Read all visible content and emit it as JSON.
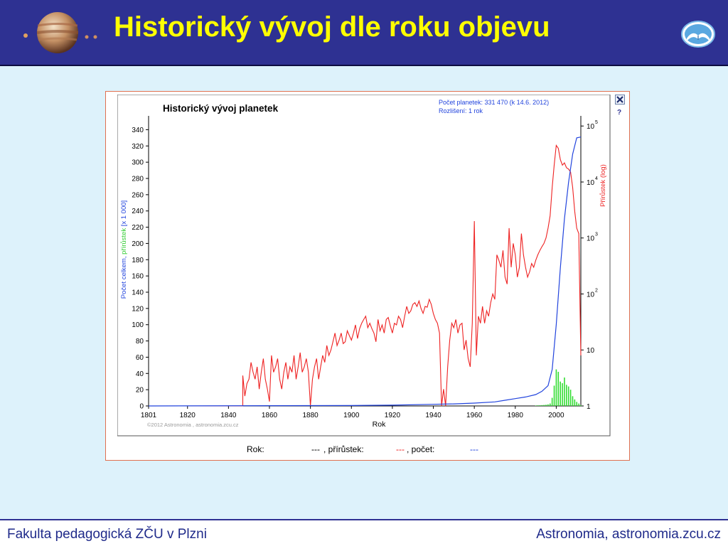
{
  "header": {
    "title": "Historický vývoj dle roku objevu"
  },
  "footer": {
    "left": "Fakulta pedagogická ZČU v Plzni",
    "right": "Astronomia, astronomia.zcu.cz"
  },
  "panel": {
    "help_label": "?",
    "legend": {
      "rok_label": "Rok:",
      "rok_value": "---",
      "prirustek_label": ", přírůstek:",
      "prirustek_value": "---",
      "pocet_label": ", počet:",
      "pocet_value": "---"
    }
  },
  "colors": {
    "header_bg": "#2e3192",
    "title": "#ffff00",
    "count_line": "#2244dd",
    "increment_line": "#ee2222",
    "bars": "#33dd33"
  },
  "chart_data": {
    "type": "line",
    "title": "Historický vývoj planetek",
    "info_lines": [
      "Počet planetek: 331 470 (k 14.6. 2012)",
      "Rozlišení: 1 rok"
    ],
    "credit": "©2012 Astronomia , astronomia.zcu.cz",
    "xlabel": "Rok",
    "ylabel_parts": [
      "Počet celkem",
      ", ",
      "přírůstek",
      " [x 1 000]"
    ],
    "ylabel_right": "Přírůstek (log)",
    "xlim": [
      1801,
      2012
    ],
    "ylim": [
      0,
      350
    ],
    "x_ticks": [
      1801,
      1820,
      1840,
      1860,
      1880,
      1900,
      1920,
      1940,
      1960,
      1980,
      2000
    ],
    "y_ticks": [
      0,
      20,
      40,
      60,
      80,
      100,
      120,
      140,
      160,
      180,
      200,
      220,
      240,
      260,
      280,
      300,
      320,
      340
    ],
    "y2_scale": "log",
    "y2_ticks": [
      {
        "label": "1",
        "exp": "",
        "value": 1
      },
      {
        "label": "10",
        "exp": "",
        "value": 10
      },
      {
        "label": "10",
        "exp": "2",
        "value": 100
      },
      {
        "label": "10",
        "exp": "3",
        "value": 1000
      },
      {
        "label": "10",
        "exp": "4",
        "value": 10000
      },
      {
        "label": "10",
        "exp": "5",
        "value": 100000
      }
    ],
    "series": [
      {
        "name": "Počet celkem",
        "axis": "left",
        "color": "#2244dd",
        "points": [
          [
            1801,
            0
          ],
          [
            1900,
            0.5
          ],
          [
            1920,
            1
          ],
          [
            1940,
            2
          ],
          [
            1950,
            2.5
          ],
          [
            1960,
            3.5
          ],
          [
            1970,
            5
          ],
          [
            1975,
            7
          ],
          [
            1980,
            9
          ],
          [
            1985,
            11
          ],
          [
            1990,
            14
          ],
          [
            1993,
            18
          ],
          [
            1996,
            25
          ],
          [
            1998,
            45
          ],
          [
            2000,
            100
          ],
          [
            2002,
            170
          ],
          [
            2004,
            230
          ],
          [
            2006,
            275
          ],
          [
            2008,
            310
          ],
          [
            2010,
            330
          ],
          [
            2012,
            331
          ]
        ]
      },
      {
        "name": "Přírůstek",
        "axis": "right",
        "color": "#ee2222",
        "points": [
          [
            1801,
            1
          ],
          [
            1847,
            1
          ],
          [
            1847,
            3.5
          ],
          [
            1848,
            1.5
          ],
          [
            1849,
            2.5
          ],
          [
            1850,
            3
          ],
          [
            1851,
            6
          ],
          [
            1852,
            4
          ],
          [
            1853,
            3
          ],
          [
            1854,
            5
          ],
          [
            1855,
            2
          ],
          [
            1856,
            4
          ],
          [
            1857,
            7
          ],
          [
            1858,
            3
          ],
          [
            1859,
            2
          ],
          [
            1860,
            1.2
          ],
          [
            1861,
            8
          ],
          [
            1862,
            4
          ],
          [
            1863,
            5
          ],
          [
            1864,
            7
          ],
          [
            1865,
            3
          ],
          [
            1866,
            2
          ],
          [
            1867,
            4
          ],
          [
            1868,
            6
          ],
          [
            1869,
            3
          ],
          [
            1870,
            5
          ],
          [
            1871,
            4
          ],
          [
            1872,
            8
          ],
          [
            1873,
            3
          ],
          [
            1874,
            5
          ],
          [
            1875,
            9
          ],
          [
            1876,
            4
          ],
          [
            1877,
            5
          ],
          [
            1878,
            7
          ],
          [
            1879,
            4
          ],
          [
            1880,
            1
          ],
          [
            1881,
            3
          ],
          [
            1882,
            5
          ],
          [
            1883,
            7
          ],
          [
            1884,
            3
          ],
          [
            1885,
            5
          ],
          [
            1886,
            8
          ],
          [
            1887,
            6
          ],
          [
            1888,
            12
          ],
          [
            1889,
            8
          ],
          [
            1890,
            10
          ],
          [
            1891,
            14
          ],
          [
            1892,
            20
          ],
          [
            1893,
            12
          ],
          [
            1894,
            15
          ],
          [
            1895,
            20
          ],
          [
            1896,
            13
          ],
          [
            1897,
            14
          ],
          [
            1898,
            22
          ],
          [
            1899,
            18
          ],
          [
            1900,
            15
          ],
          [
            1901,
            20
          ],
          [
            1902,
            28
          ],
          [
            1903,
            16
          ],
          [
            1904,
            24
          ],
          [
            1905,
            30
          ],
          [
            1906,
            35
          ],
          [
            1907,
            40
          ],
          [
            1908,
            25
          ],
          [
            1909,
            30
          ],
          [
            1910,
            24
          ],
          [
            1911,
            20
          ],
          [
            1912,
            14
          ],
          [
            1913,
            35
          ],
          [
            1914,
            22
          ],
          [
            1915,
            28
          ],
          [
            1916,
            20
          ],
          [
            1917,
            35
          ],
          [
            1918,
            38
          ],
          [
            1919,
            27
          ],
          [
            1920,
            20
          ],
          [
            1921,
            30
          ],
          [
            1922,
            28
          ],
          [
            1923,
            40
          ],
          [
            1924,
            35
          ],
          [
            1925,
            25
          ],
          [
            1926,
            40
          ],
          [
            1927,
            60
          ],
          [
            1928,
            45
          ],
          [
            1929,
            50
          ],
          [
            1930,
            65
          ],
          [
            1931,
            70
          ],
          [
            1932,
            60
          ],
          [
            1933,
            75
          ],
          [
            1934,
            55
          ],
          [
            1935,
            45
          ],
          [
            1936,
            60
          ],
          [
            1937,
            58
          ],
          [
            1938,
            80
          ],
          [
            1939,
            65
          ],
          [
            1940,
            45
          ],
          [
            1941,
            35
          ],
          [
            1942,
            30
          ],
          [
            1943,
            20
          ],
          [
            1944,
            1
          ],
          [
            1945,
            2
          ],
          [
            1946,
            1
          ],
          [
            1947,
            5
          ],
          [
            1948,
            15
          ],
          [
            1949,
            30
          ],
          [
            1950,
            25
          ],
          [
            1951,
            35
          ],
          [
            1952,
            20
          ],
          [
            1953,
            28
          ],
          [
            1954,
            30
          ],
          [
            1955,
            10
          ],
          [
            1956,
            15
          ],
          [
            1957,
            7
          ],
          [
            1958,
            5
          ],
          [
            1959,
            30
          ],
          [
            1960,
            2000
          ],
          [
            1961,
            8
          ],
          [
            1962,
            40
          ],
          [
            1963,
            30
          ],
          [
            1964,
            60
          ],
          [
            1965,
            30
          ],
          [
            1966,
            50
          ],
          [
            1967,
            40
          ],
          [
            1968,
            70
          ],
          [
            1969,
            100
          ],
          [
            1970,
            80
          ],
          [
            1971,
            500
          ],
          [
            1972,
            400
          ],
          [
            1973,
            300
          ],
          [
            1974,
            600
          ],
          [
            1975,
            200
          ],
          [
            1976,
            150
          ],
          [
            1977,
            1500
          ],
          [
            1978,
            300
          ],
          [
            1979,
            800
          ],
          [
            1980,
            500
          ],
          [
            1981,
            200
          ],
          [
            1982,
            300
          ],
          [
            1983,
            1200
          ],
          [
            1984,
            500
          ],
          [
            1985,
            300
          ],
          [
            1986,
            200
          ],
          [
            1987,
            250
          ],
          [
            1988,
            350
          ],
          [
            1989,
            300
          ],
          [
            1990,
            400
          ],
          [
            1991,
            500
          ],
          [
            1992,
            600
          ],
          [
            1993,
            700
          ],
          [
            1994,
            800
          ],
          [
            1995,
            1000
          ],
          [
            1996,
            1500
          ],
          [
            1997,
            2500
          ],
          [
            1998,
            8000
          ],
          [
            1999,
            20000
          ],
          [
            2000,
            45000
          ],
          [
            2001,
            40000
          ],
          [
            2002,
            25000
          ],
          [
            2003,
            20000
          ],
          [
            2004,
            22000
          ],
          [
            2005,
            18000
          ],
          [
            2006,
            17000
          ],
          [
            2007,
            15000
          ],
          [
            2008,
            8000
          ],
          [
            2009,
            3000
          ],
          [
            2010,
            1500
          ],
          [
            2011,
            1200
          ],
          [
            2012,
            8
          ]
        ]
      },
      {
        "name": "Přírůstek",
        "axis": "left",
        "type": "bar",
        "color": "#33dd33",
        "points": [
          [
            1990,
            0.5
          ],
          [
            1991,
            0.7
          ],
          [
            1992,
            0.8
          ],
          [
            1993,
            1
          ],
          [
            1994,
            1.2
          ],
          [
            1995,
            1.5
          ],
          [
            1996,
            2
          ],
          [
            1997,
            3
          ],
          [
            1998,
            10
          ],
          [
            1999,
            25
          ],
          [
            2000,
            45
          ],
          [
            2001,
            42
          ],
          [
            2002,
            30
          ],
          [
            2003,
            28
          ],
          [
            2004,
            35
          ],
          [
            2005,
            26
          ],
          [
            2006,
            24
          ],
          [
            2007,
            20
          ],
          [
            2008,
            12
          ],
          [
            2009,
            8
          ],
          [
            2010,
            5
          ],
          [
            2011,
            3
          ],
          [
            2012,
            1
          ]
        ]
      }
    ]
  }
}
